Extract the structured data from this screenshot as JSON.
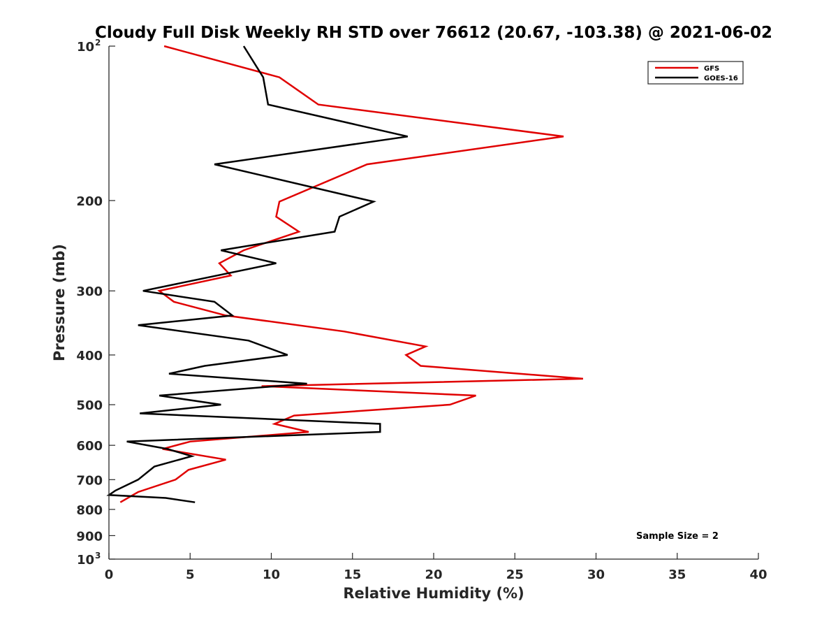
{
  "chart_data": {
    "type": "line",
    "title": "Cloudy Full Disk Weekly RH STD over 76612 (20.67, -103.38) @ 2021-06-02",
    "xlabel": "Relative Humidity (%)",
    "ylabel": "Pressure (mb)",
    "xlim": [
      0,
      40
    ],
    "ylim": [
      100,
      1000
    ],
    "yscale": "log",
    "y_reversed": true,
    "x_ticks": [
      "0",
      "5",
      "10",
      "15",
      "20",
      "25",
      "30",
      "35",
      "40"
    ],
    "y_ticks": [
      {
        "value": 100,
        "label": "10",
        "sup": "2"
      },
      {
        "value": 200,
        "label": "200"
      },
      {
        "value": 300,
        "label": "300"
      },
      {
        "value": 400,
        "label": "400"
      },
      {
        "value": 500,
        "label": "500"
      },
      {
        "value": 600,
        "label": "600"
      },
      {
        "value": 700,
        "label": "700"
      },
      {
        "value": 800,
        "label": "800"
      },
      {
        "value": 900,
        "label": "900"
      },
      {
        "value": 1000,
        "label": "10",
        "sup": "3"
      }
    ],
    "annotation": "Sample Size = 2",
    "legend_position": "top-right",
    "series": [
      {
        "name": "GFS",
        "color": "#e00000",
        "points": [
          [
            3.4,
            100
          ],
          [
            10.5,
            115
          ],
          [
            12.9,
            130
          ],
          [
            28.0,
            150
          ],
          [
            15.9,
            170
          ],
          [
            10.5,
            201
          ],
          [
            10.3,
            215
          ],
          [
            11.7,
            230
          ],
          [
            8.3,
            250
          ],
          [
            6.8,
            265
          ],
          [
            7.5,
            280
          ],
          [
            3.1,
            300
          ],
          [
            4.0,
            315
          ],
          [
            7.2,
            335
          ],
          [
            14.5,
            360
          ],
          [
            19.5,
            385
          ],
          [
            18.3,
            400
          ],
          [
            19.2,
            420
          ],
          [
            29.2,
            445
          ],
          [
            9.4,
            460
          ],
          [
            22.6,
            480
          ],
          [
            21.0,
            500
          ],
          [
            11.4,
            525
          ],
          [
            10.2,
            545
          ],
          [
            12.3,
            565
          ],
          [
            5.0,
            590
          ],
          [
            3.3,
            610
          ],
          [
            7.2,
            640
          ],
          [
            4.9,
            670
          ],
          [
            4.1,
            700
          ],
          [
            1.8,
            740
          ],
          [
            0.7,
            775
          ]
        ]
      },
      {
        "name": "GOES-16",
        "color": "#000000",
        "points": [
          [
            8.3,
            100
          ],
          [
            9.5,
            115
          ],
          [
            9.8,
            130
          ],
          [
            18.4,
            150
          ],
          [
            6.5,
            170
          ],
          [
            16.3,
            201
          ],
          [
            14.2,
            215
          ],
          [
            13.9,
            230
          ],
          [
            6.9,
            250
          ],
          [
            10.3,
            265
          ],
          [
            2.1,
            300
          ],
          [
            6.5,
            315
          ],
          [
            7.6,
            335
          ],
          [
            1.8,
            350
          ],
          [
            8.6,
            375
          ],
          [
            11.0,
            400
          ],
          [
            5.9,
            420
          ],
          [
            3.7,
            435
          ],
          [
            12.2,
            455
          ],
          [
            3.1,
            480
          ],
          [
            6.9,
            500
          ],
          [
            1.9,
            520
          ],
          [
            16.7,
            545
          ],
          [
            16.7,
            565
          ],
          [
            1.1,
            590
          ],
          [
            3.6,
            610
          ],
          [
            5.1,
            630
          ],
          [
            2.8,
            660
          ],
          [
            1.8,
            700
          ],
          [
            0.4,
            735
          ],
          [
            0.0,
            750
          ],
          [
            3.5,
            760
          ],
          [
            5.3,
            775
          ]
        ]
      }
    ]
  }
}
